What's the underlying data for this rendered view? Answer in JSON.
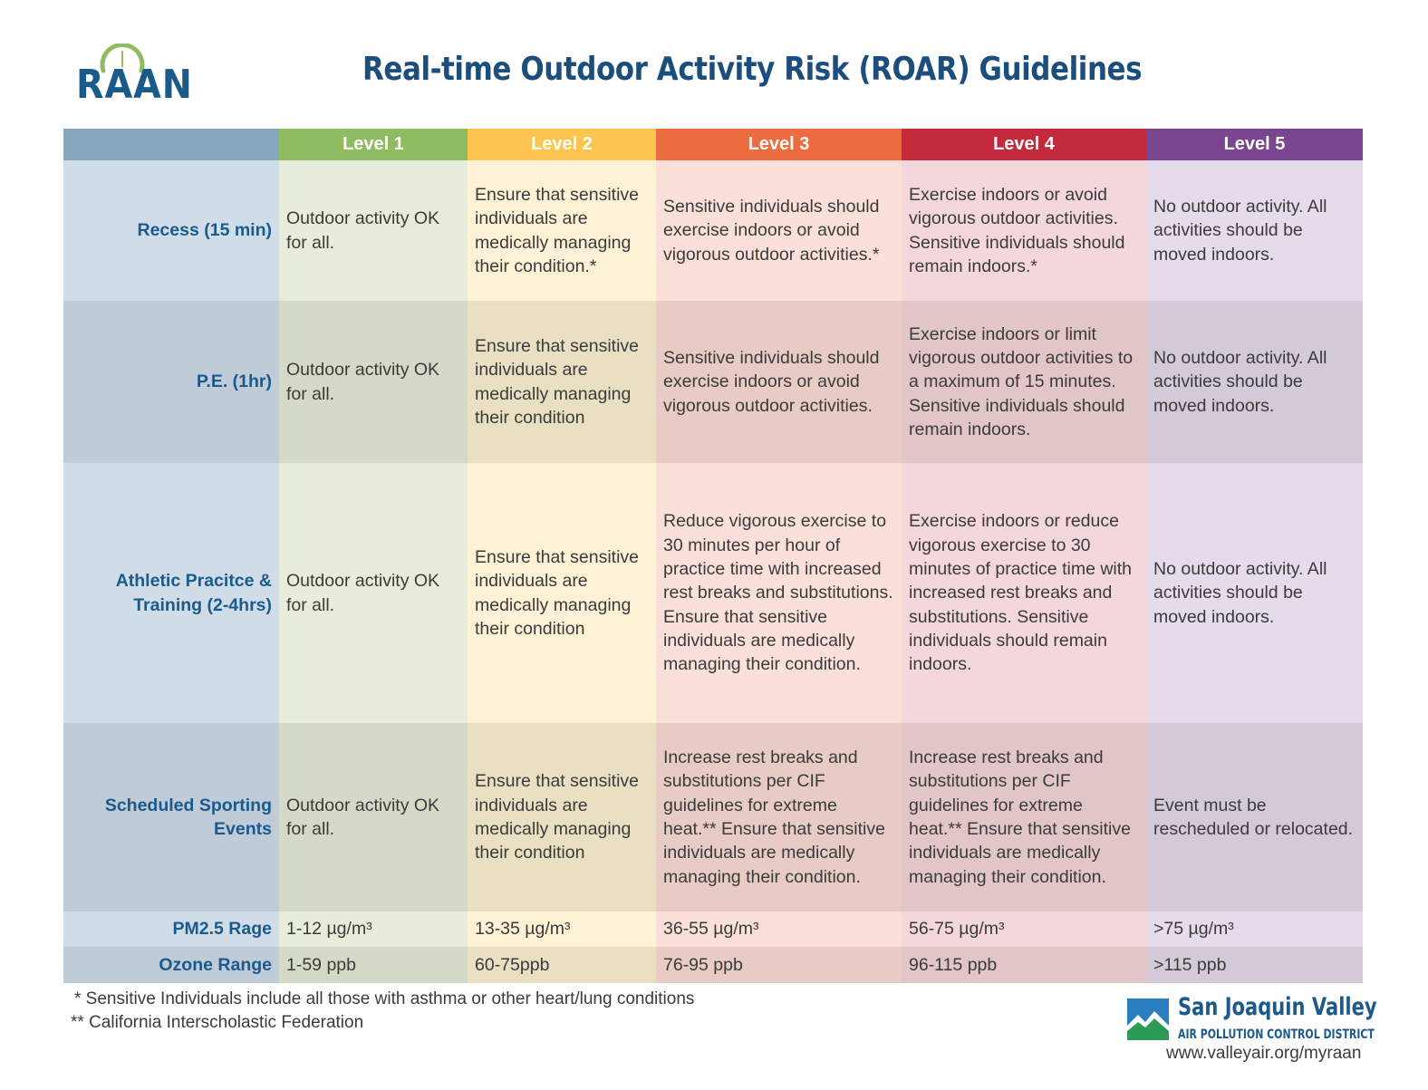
{
  "logo": {
    "text": "RAAN"
  },
  "title": "Real-time Outdoor Activity Risk (ROAR) Guidelines",
  "table": {
    "levels": [
      "Level 1",
      "Level 2",
      "Level 3",
      "Level 4",
      "Level 5"
    ],
    "level_colors": [
      "#8fbc61",
      "#fdc44f",
      "#ec6c3f",
      "#c32a3c",
      "#7b458f"
    ],
    "rows": [
      {
        "label": "Recess (15 min)",
        "cells": [
          "Outdoor activity OK for all.",
          "Ensure that sensitive individuals are medically managing their condition.*",
          "Sensitive individuals should exercise indoors or avoid vigorous outdoor activities.*",
          "Exercise indoors or avoid vigorous outdoor activities. Sensitive individuals should remain indoors.*",
          "No outdoor activity. All activities should be moved indoors."
        ]
      },
      {
        "label": "P.E. (1hr)",
        "cells": [
          "Outdoor activity OK for all.",
          "Ensure that sensitive individuals are medically managing their condition",
          "Sensitive individuals should exercise indoors or avoid vigorous outdoor activities.",
          "Exercise indoors or limit vigorous outdoor activities to a maximum of 15 minutes. Sensitive individuals should remain indoors.",
          "No outdoor activity. All activities should be moved indoors."
        ]
      },
      {
        "label": "Athletic Pracitce & Training (2-4hrs)",
        "cells": [
          "Outdoor activity OK for all.",
          "Ensure that sensitive individuals are medically managing their condition",
          "Reduce vigorous exercise to 30 minutes per hour of practice time with increased rest breaks and substitutions. Ensure that sensitive individuals are medically managing their condition.",
          "Exercise indoors or reduce vigorous exercise to 30 minutes of practice time with increased rest breaks and substitutions. Sensitive individuals should remain indoors.",
          "No outdoor activity. All activities should be moved indoors."
        ]
      },
      {
        "label": "Scheduled Sporting Events",
        "cells": [
          "Outdoor activity OK for all.",
          "Ensure that sensitive individuals are medically managing their condition",
          "Increase rest breaks and substitutions per CIF guidelines for extreme heat.** Ensure that sensitive individuals are medically managing their condition.",
          "Increase rest breaks and substitutions per CIF guidelines for extreme heat.** Ensure that sensitive individuals are medically managing their condition.",
          "Event must be rescheduled or relocated."
        ]
      },
      {
        "label": "PM2.5 Rage",
        "cells": [
          "1-12 µg/m³",
          "13-35 µg/m³",
          "36-55 µg/m³",
          "56-75 µg/m³",
          ">75 µg/m³"
        ]
      },
      {
        "label": "Ozone Range",
        "cells": [
          "1-59 ppb",
          "60-75ppb",
          "76-95 ppb",
          "96-115 ppb",
          ">115 ppb"
        ]
      }
    ]
  },
  "footnotes": [
    "* Sensitive Individuals include all those with asthma or other heart/lung conditions",
    "** California Interscholastic Federation"
  ],
  "footer_logo": {
    "name": "San Joaquin Valley",
    "subtitle": "AIR POLLUTION CONTROL DISTRICT",
    "url": "www.valleyair.org/myraan"
  }
}
